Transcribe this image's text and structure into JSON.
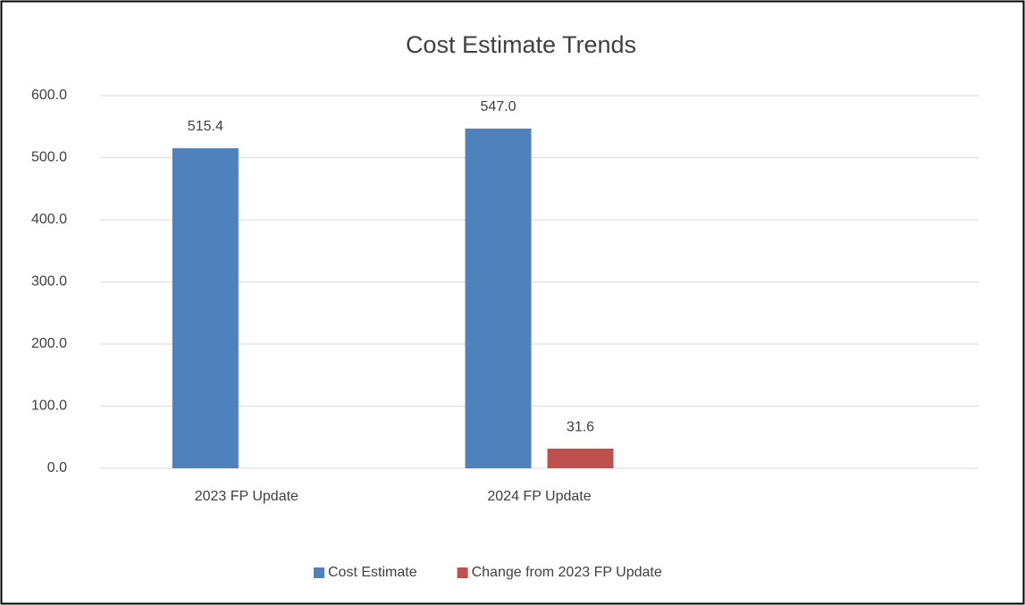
{
  "chart_data": {
    "type": "bar",
    "title": "Cost Estimate Trends",
    "categories": [
      "2023 FP Update",
      "2024 FP Update",
      null
    ],
    "series": [
      {
        "name": "Cost Estimate",
        "color": "#4f81bd",
        "values": [
          515.4,
          547.0,
          null
        ],
        "value_labels": [
          "515.4",
          "547.0",
          null
        ]
      },
      {
        "name": "Change from 2023 FP Update",
        "color": "#c0504d",
        "values": [
          null,
          31.6,
          null
        ],
        "value_labels": [
          null,
          "31.6",
          null
        ]
      }
    ],
    "ylim": [
      0,
      600
    ],
    "yticks": [
      {
        "value": 0,
        "label": "0.0"
      },
      {
        "value": 100,
        "label": "100.0"
      },
      {
        "value": 200,
        "label": "200.0"
      },
      {
        "value": 300,
        "label": "300.0"
      },
      {
        "value": 400,
        "label": "400.0"
      },
      {
        "value": 500,
        "label": "500.0"
      },
      {
        "value": 600,
        "label": "600.0"
      }
    ],
    "grid": true,
    "legend": "bottom"
  }
}
